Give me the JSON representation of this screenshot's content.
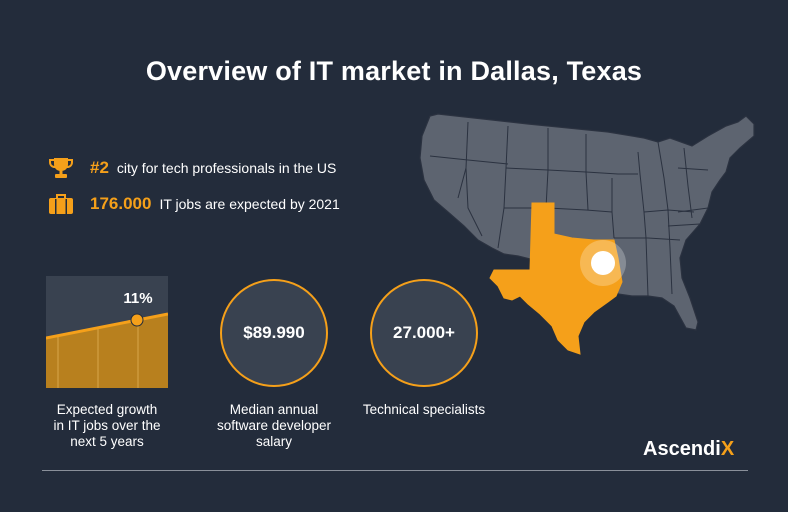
{
  "title": "Overview of IT market in Dallas, Texas",
  "facts": [
    {
      "icon": "trophy-icon",
      "highlight": "#2",
      "text": "city for tech professionals in the US"
    },
    {
      "icon": "briefcase-icon",
      "highlight": "176.000",
      "text": "IT jobs are expected by 2021"
    }
  ],
  "stats": {
    "growth": {
      "value": "11%",
      "label_lines": [
        "Expected growth",
        "in IT jobs over the",
        "next 5 years"
      ]
    },
    "salary": {
      "value": "$89.990",
      "label_lines": [
        "Median annual",
        "software developer",
        "salary"
      ]
    },
    "specialists": {
      "value": "27.000+",
      "label_lines": [
        "Technical specialists"
      ]
    }
  },
  "brand": {
    "name_main": "Ascendi",
    "name_accent": "X"
  },
  "colors": {
    "background": "#232c3b",
    "accent": "#f5a01a",
    "map_gray": "#5d6470",
    "circle_fill": "#394250"
  }
}
